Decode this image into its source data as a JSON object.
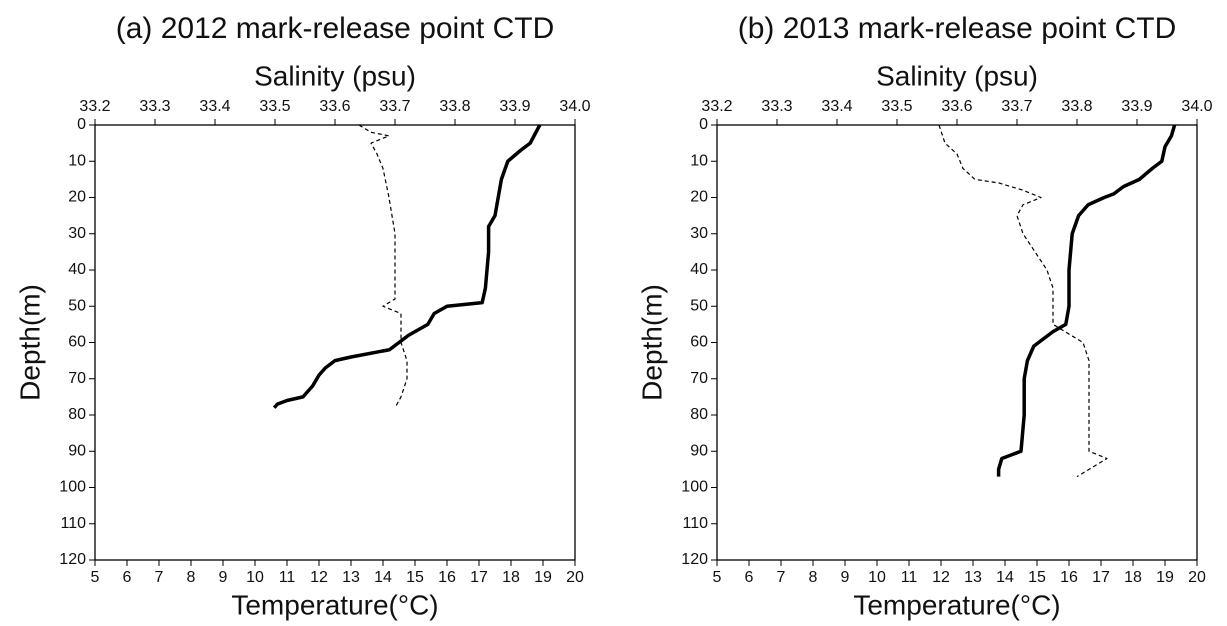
{
  "chart_data": [
    {
      "type": "line",
      "title": "(a) 2012 mark-release point CTD",
      "xlabel": "Temperature(°C)",
      "x2label": "Salinity (psu)",
      "ylabel": "Depth(m)",
      "xlim": [
        5,
        20
      ],
      "xticks": [
        5,
        6,
        7,
        8,
        9,
        10,
        11,
        12,
        13,
        14,
        15,
        16,
        17,
        18,
        19,
        20
      ],
      "x2lim": [
        33.2,
        34.0
      ],
      "x2ticks": [
        33.2,
        33.3,
        33.4,
        33.5,
        33.6,
        33.7,
        33.8,
        33.9,
        {
          "value": 34,
          "label": "34.0"
        }
      ],
      "ylim": [
        0,
        120
      ],
      "yticks": [
        0,
        10,
        20,
        30,
        40,
        50,
        60,
        70,
        80,
        90,
        100,
        110,
        120
      ],
      "y_inverted": true,
      "series": [
        {
          "color": "#000000",
          "width": 3.5,
          "dashed": false,
          "x": [
            18.9,
            18.6,
            18.3,
            17.9,
            17.7,
            17.6,
            17.5,
            17.3,
            17.3,
            17.2,
            17.1,
            16.0,
            15.6,
            15.4,
            14.8,
            14.5,
            14.2,
            13.0,
            12.5,
            12.2,
            12.0,
            11.8,
            11.5,
            11.0,
            10.7,
            10.6
          ],
          "values": [
            0,
            5,
            7,
            10,
            15,
            20,
            25,
            28,
            35,
            45,
            49,
            50,
            52,
            55,
            58,
            60,
            62,
            64,
            65,
            67,
            69,
            72,
            75,
            76,
            77,
            78
          ]
        },
        {
          "color": "#000000",
          "width": 1.2,
          "dashed": true,
          "axis": "x2",
          "x": [
            33.64,
            33.66,
            33.69,
            33.66,
            33.67,
            33.68,
            33.69,
            33.7,
            33.7,
            33.7,
            33.68,
            33.71,
            33.71,
            33.72,
            33.72,
            33.71,
            33.7
          ],
          "values": [
            0,
            2,
            3,
            5,
            8,
            12,
            20,
            30,
            40,
            48,
            50,
            52,
            60,
            65,
            70,
            75,
            78
          ]
        }
      ]
    },
    {
      "type": "line",
      "title": "(b) 2013 mark-release point CTD",
      "xlabel": "Temperature(°C)",
      "x2label": "Salinity (psu)",
      "ylabel": "Depth(m)",
      "xlim": [
        5,
        20
      ],
      "xticks": [
        5,
        6,
        7,
        8,
        9,
        10,
        11,
        12,
        13,
        14,
        15,
        16,
        17,
        18,
        19,
        20
      ],
      "x2lim": [
        33.2,
        34.0
      ],
      "x2ticks": [
        33.2,
        33.3,
        33.4,
        33.5,
        33.6,
        33.7,
        33.8,
        33.9,
        {
          "value": 34,
          "label": "34.0"
        }
      ],
      "ylim": [
        0,
        120
      ],
      "yticks": [
        0,
        10,
        20,
        30,
        40,
        50,
        60,
        70,
        80,
        90,
        100,
        110,
        120
      ],
      "y_inverted": true,
      "series": [
        {
          "color": "#000000",
          "width": 3.5,
          "dashed": false,
          "x": [
            19.3,
            19.2,
            19.0,
            18.9,
            18.6,
            18.2,
            17.7,
            17.4,
            17.1,
            16.6,
            16.3,
            16.1,
            16.0,
            16.0,
            15.9,
            15.5,
            15.2,
            14.9,
            14.7,
            14.6,
            14.6,
            14.5,
            14.2,
            13.9,
            13.8,
            13.8
          ],
          "values": [
            0,
            3,
            6,
            10,
            12,
            15,
            17,
            19,
            20,
            22,
            25,
            30,
            40,
            50,
            55,
            57,
            59,
            61,
            65,
            70,
            80,
            90,
            91,
            92,
            95,
            97
          ]
        },
        {
          "color": "#000000",
          "width": 1.2,
          "dashed": true,
          "axis": "x2",
          "x": [
            33.57,
            33.58,
            33.6,
            33.61,
            33.63,
            33.67,
            33.71,
            33.74,
            33.71,
            33.7,
            33.71,
            33.73,
            33.75,
            33.76,
            33.76,
            33.76,
            33.78,
            33.81,
            33.82,
            33.82,
            33.82,
            33.82,
            33.85,
            33.83,
            33.8
          ],
          "values": [
            0,
            5,
            8,
            12,
            15,
            16,
            18,
            20,
            22,
            25,
            30,
            35,
            40,
            45,
            50,
            55,
            57,
            60,
            65,
            70,
            80,
            90,
            92,
            94,
            97
          ]
        }
      ]
    }
  ]
}
